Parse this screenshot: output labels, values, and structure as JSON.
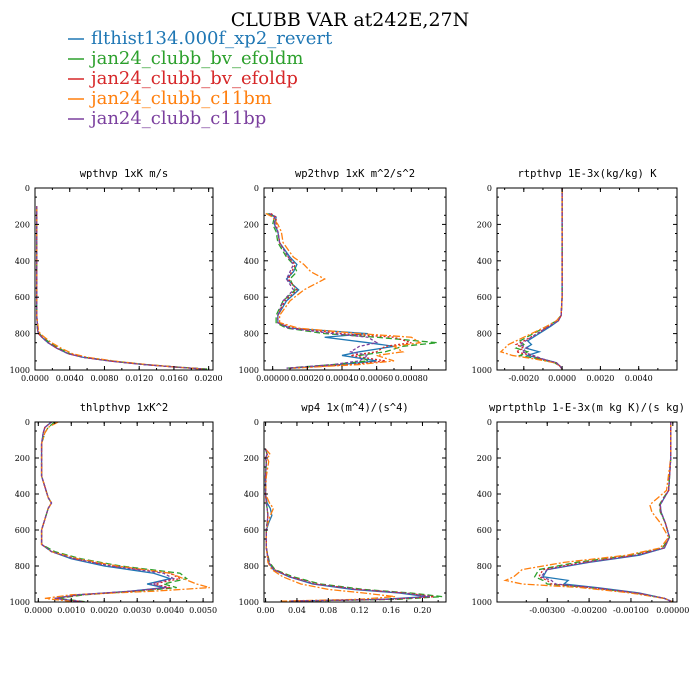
{
  "title": "CLUBB VAR at242E,27N",
  "legend": [
    {
      "label": "flthist134.000f_xp2_revert",
      "color": "#1f77b4"
    },
    {
      "label": "jan24_clubb_bv_efoldm",
      "color": "#2ca02c"
    },
    {
      "label": "jan24_clubb_bv_efoldp",
      "color": "#d62728"
    },
    {
      "label": "jan24_clubb_c11bm",
      "color": "#ff7f0e"
    },
    {
      "label": "jan24_clubb_c11bp",
      "color": "#7b3f9e"
    }
  ],
  "chart_data": [
    {
      "type": "line",
      "title": "wpthvp  1xK m/s",
      "xlim": [
        0,
        0.0205
      ],
      "ylim": [
        1000,
        0
      ],
      "ylabel": "",
      "xticks": [
        0,
        0.004,
        0.008,
        0.012,
        0.016,
        0.02
      ],
      "xticklabels": [
        "0.0000",
        "0.0040",
        "0.0080",
        "0.0120",
        "0.0160",
        "0.0200"
      ],
      "yticks": [
        0,
        200,
        400,
        600,
        800,
        1000
      ],
      "y": [
        100,
        300,
        500,
        700,
        780,
        800,
        820,
        850,
        880,
        910,
        930,
        950,
        970,
        985,
        995
      ],
      "series": [
        {
          "values": [
            0.0002,
            0.0002,
            0.0002,
            0.0002,
            0.0003,
            0.0004,
            0.0008,
            0.0015,
            0.0025,
            0.0038,
            0.0055,
            0.0085,
            0.0125,
            0.0165,
            0.0196
          ]
        },
        {
          "values": [
            0.0002,
            0.0002,
            0.0002,
            0.0002,
            0.0003,
            0.0005,
            0.0009,
            0.0017,
            0.0027,
            0.004,
            0.0057,
            0.0088,
            0.0128,
            0.0168,
            0.0199
          ]
        },
        {
          "values": [
            0.0002,
            0.0002,
            0.0002,
            0.0002,
            0.0003,
            0.0004,
            0.0008,
            0.0015,
            0.0025,
            0.0038,
            0.0055,
            0.0085,
            0.0125,
            0.0165,
            0.0196
          ]
        },
        {
          "values": [
            0.0002,
            0.0002,
            0.0002,
            0.0002,
            0.0004,
            0.0006,
            0.0011,
            0.0019,
            0.003,
            0.0043,
            0.006,
            0.009,
            0.0128,
            0.0165,
            0.0196
          ]
        },
        {
          "values": [
            0.0002,
            0.0002,
            0.0002,
            0.0002,
            0.0003,
            0.0004,
            0.0008,
            0.0015,
            0.0025,
            0.0038,
            0.0055,
            0.0085,
            0.0125,
            0.0165,
            0.0196
          ]
        }
      ]
    },
    {
      "type": "line",
      "title": "wp2thvp  1xK m^2/s^2",
      "xlim": [
        -5e-05,
        0.001
      ],
      "ylim": [
        1000,
        0
      ],
      "xticks": [
        0,
        0.0002,
        0.0004,
        0.0006,
        0.0008
      ],
      "xticklabels": [
        "0.00000",
        "0.00020",
        "0.00040",
        "0.00060",
        "0.00080"
      ],
      "yticks": [
        0,
        200,
        400,
        600,
        800,
        1000
      ],
      "y": [
        140,
        160,
        200,
        240,
        300,
        380,
        420,
        460,
        500,
        560,
        620,
        700,
        740,
        770,
        800,
        820,
        850,
        870,
        900,
        920,
        950,
        970,
        990
      ],
      "series": [
        {
          "values": [
            -2e-05,
            2e-05,
            1e-05,
            3e-05,
            4e-05,
            0.0001,
            0.00014,
            0.00012,
            8e-05,
            0.00015,
            8e-05,
            3e-05,
            3e-05,
            0.0001,
            0.00055,
            0.0003,
            0.00055,
            0.0007,
            0.0005,
            0.0004,
            0.0006,
            0.0004,
            0.0001
          ]
        },
        {
          "values": [
            -3e-05,
            1e-05,
            0.0,
            2e-05,
            3e-05,
            8e-05,
            0.00012,
            0.00014,
            0.0001,
            0.00013,
            6e-05,
            2e-05,
            2e-05,
            8e-05,
            0.0003,
            0.0006,
            0.00095,
            0.00075,
            0.00065,
            0.0005,
            0.00055,
            0.00035,
            8e-05
          ]
        },
        {
          "values": [
            -1e-05,
            2e-05,
            2e-05,
            3e-05,
            4e-05,
            9e-05,
            0.00013,
            0.00011,
            9e-05,
            0.00014,
            7e-05,
            3e-05,
            3e-05,
            0.00012,
            0.0004,
            0.0007,
            0.0008,
            0.00065,
            0.0006,
            0.00045,
            0.00065,
            0.00045,
            0.0001
          ]
        },
        {
          "values": [
            -4e-05,
            0.0,
            3e-05,
            5e-05,
            6e-05,
            0.00012,
            0.00018,
            0.00022,
            0.0003,
            0.00018,
            0.0001,
            4e-05,
            4e-05,
            0.00015,
            0.0005,
            0.0008,
            0.00085,
            0.0007,
            0.00075,
            0.0006,
            0.0007,
            0.0005,
            0.00012
          ]
        },
        {
          "values": [
            -2e-05,
            1e-05,
            1e-05,
            3e-05,
            4e-05,
            9e-05,
            0.00012,
            0.0001,
            8e-05,
            0.00012,
            6e-05,
            3e-05,
            3e-05,
            9e-05,
            0.00035,
            0.00055,
            0.0006,
            0.0005,
            0.00045,
            0.00055,
            0.0005,
            0.00035,
            8e-05
          ]
        }
      ]
    },
    {
      "type": "line",
      "title": "rtpthvp  1E-3x(kg/kg) K",
      "xlim": [
        -0.0034,
        0.006
      ],
      "ylim": [
        1000,
        0
      ],
      "xticks": [
        -0.002,
        0,
        0.002,
        0.004
      ],
      "xticklabels": [
        "-0.0020",
        "0.0000",
        "0.0020",
        "0.0040"
      ],
      "yticks": [
        0,
        200,
        400,
        600,
        800,
        1000
      ],
      "y": [
        0,
        300,
        600,
        700,
        730,
        760,
        800,
        840,
        860,
        880,
        900,
        920,
        940,
        960,
        980,
        995
      ],
      "series": [
        {
          "values": [
            0,
            0,
            0,
            -5e-05,
            -0.0002,
            -0.0006,
            -0.0012,
            -0.0018,
            -0.0016,
            -0.0019,
            -0.0012,
            -0.0018,
            -0.001,
            -0.0003,
            -0.0001,
            0
          ]
        },
        {
          "values": [
            0,
            0,
            0,
            -5e-05,
            -0.0003,
            -0.0008,
            -0.0015,
            -0.0022,
            -0.002,
            -0.0024,
            -0.0018,
            -0.0022,
            -0.0012,
            -0.0004,
            -0.0001,
            0
          ]
        },
        {
          "values": [
            0,
            0,
            0,
            -5e-05,
            -0.0002,
            -0.0007,
            -0.0013,
            -0.002,
            -0.0024,
            -0.002,
            -0.0024,
            -0.0016,
            -0.0011,
            -0.0003,
            -0.0001,
            0
          ]
        },
        {
          "values": [
            0,
            0,
            0,
            -5e-05,
            -0.0003,
            -0.0008,
            -0.0016,
            -0.0024,
            -0.0028,
            -0.003,
            -0.0032,
            -0.0026,
            -0.0014,
            -0.0004,
            -0.0001,
            0
          ]
        },
        {
          "values": [
            0,
            0,
            0,
            -5e-05,
            -0.0002,
            -0.0007,
            -0.0013,
            -0.0019,
            -0.0022,
            -0.0018,
            -0.0021,
            -0.0015,
            -0.001,
            -0.0003,
            -0.0001,
            0
          ]
        }
      ]
    },
    {
      "type": "line",
      "title": "thlpthvp  1xK^2",
      "xlim": [
        -0.0001,
        0.0053
      ],
      "ylim": [
        1000,
        0
      ],
      "xticks": [
        0,
        0.001,
        0.002,
        0.003,
        0.004,
        0.005
      ],
      "xticklabels": [
        "0.0000",
        "0.0010",
        "0.0020",
        "0.0030",
        "0.0040",
        "0.0050"
      ],
      "yticks": [
        0,
        200,
        400,
        600,
        800,
        1000
      ],
      "y": [
        0,
        30,
        60,
        120,
        300,
        420,
        450,
        480,
        600,
        680,
        720,
        760,
        800,
        840,
        870,
        900,
        920,
        940,
        960,
        980,
        1000
      ],
      "series": [
        {
          "values": [
            0.0004,
            0.0002,
            0.00015,
            0.0001,
            0.0001,
            0.0003,
            0.0004,
            0.0003,
            0.0001,
            0.0001,
            0.0004,
            0.001,
            0.002,
            0.0035,
            0.004,
            0.0033,
            0.0038,
            0.0028,
            0.0012,
            0.0005,
            0.0014
          ]
        },
        {
          "values": [
            0.0005,
            0.0003,
            0.0002,
            0.0001,
            0.0001,
            0.0003,
            0.0004,
            0.0003,
            0.0001,
            0.0001,
            0.0005,
            0.0013,
            0.0025,
            0.0043,
            0.0045,
            0.0038,
            0.0042,
            0.003,
            0.0014,
            0.0006,
            0.0015
          ]
        },
        {
          "values": [
            0.0004,
            0.0002,
            0.00015,
            0.0001,
            0.0001,
            0.0003,
            0.0004,
            0.0003,
            0.0001,
            0.0001,
            0.0004,
            0.0011,
            0.0022,
            0.004,
            0.0043,
            0.0035,
            0.004,
            0.0029,
            0.0013,
            0.0005,
            0.0014
          ]
        },
        {
          "values": [
            0.0006,
            0.0003,
            0.0002,
            0.0001,
            0.0001,
            0.0003,
            0.0004,
            0.0003,
            0.0001,
            0.0001,
            0.0004,
            0.0012,
            0.0024,
            0.004,
            0.0044,
            0.0048,
            0.0052,
            0.0035,
            0.001,
            0.0002,
            0.0012
          ]
        },
        {
          "values": [
            0.0004,
            0.0002,
            0.00015,
            0.0001,
            0.0001,
            0.0003,
            0.0004,
            0.0003,
            0.0001,
            0.0001,
            0.0004,
            0.0011,
            0.0022,
            0.0038,
            0.0041,
            0.0034,
            0.0039,
            0.0028,
            0.0012,
            0.0005,
            0.0014
          ]
        }
      ]
    },
    {
      "type": "line",
      "title": "wp4  1x(m^4)/(s^4)",
      "xlim": [
        -0.002,
        0.23
      ],
      "ylim": [
        1000,
        0
      ],
      "xticks": [
        0,
        0.04,
        0.08,
        0.12,
        0.16,
        0.2
      ],
      "xticklabels": [
        "0.00",
        "0.04",
        "0.08",
        "0.12",
        "0.16",
        "0.20"
      ],
      "yticks": [
        0,
        200,
        400,
        600,
        800,
        1000
      ],
      "y": [
        150,
        180,
        200,
        220,
        300,
        400,
        450,
        480,
        520,
        560,
        600,
        700,
        780,
        820,
        860,
        900,
        930,
        950,
        970,
        985,
        995
      ],
      "series": [
        {
          "values": [
            0.0,
            0.002,
            0.0,
            0.001,
            0.0,
            0.0,
            0.002,
            0.006,
            0.008,
            0.004,
            0.001,
            0.001,
            0.004,
            0.01,
            0.03,
            0.06,
            0.11,
            0.17,
            0.205,
            0.15,
            0.03
          ]
        },
        {
          "values": [
            0.0,
            0.002,
            0.0,
            0.001,
            0.0,
            0.0,
            0.001,
            0.002,
            0.003,
            0.002,
            0.001,
            0.001,
            0.005,
            0.012,
            0.035,
            0.07,
            0.125,
            0.185,
            0.225,
            0.17,
            0.035
          ]
        },
        {
          "values": [
            0.0,
            0.002,
            0.0,
            0.001,
            0.0,
            0.0,
            0.001,
            0.002,
            0.003,
            0.002,
            0.001,
            0.001,
            0.004,
            0.011,
            0.032,
            0.065,
            0.118,
            0.178,
            0.215,
            0.16,
            0.032
          ]
        },
        {
          "values": [
            0.0,
            0.006,
            0.002,
            0.004,
            0.001,
            0.0,
            0.005,
            0.01,
            0.006,
            0.003,
            0.001,
            0.001,
            0.003,
            0.008,
            0.022,
            0.045,
            0.08,
            0.125,
            0.165,
            0.12,
            0.02
          ]
        },
        {
          "values": [
            0.0,
            0.002,
            0.0,
            0.001,
            0.0,
            0.0,
            0.001,
            0.002,
            0.003,
            0.002,
            0.001,
            0.001,
            0.004,
            0.01,
            0.03,
            0.062,
            0.115,
            0.175,
            0.21,
            0.155,
            0.03
          ]
        }
      ]
    },
    {
      "type": "line",
      "title": "wprtpthlp  1-E-3x(m kg K)/(s kg)",
      "xlim": [
        -0.0042,
        0.0001
      ],
      "ylim": [
        1000,
        0
      ],
      "xticks": [
        -0.003,
        -0.002,
        -0.001,
        0
      ],
      "xticklabels": [
        "-0.00300",
        "-0.00200",
        "-0.00100",
        "0.00000"
      ],
      "yticks": [
        0,
        200,
        400,
        600,
        800,
        1000
      ],
      "y": [
        0,
        200,
        380,
        420,
        460,
        500,
        560,
        640,
        700,
        740,
        780,
        820,
        860,
        880,
        900,
        920,
        950,
        980,
        1000
      ],
      "series": [
        {
          "values": [
            -5e-05,
            -5e-05,
            -0.0001,
            -0.0002,
            -0.0003,
            -0.00028,
            -0.00018,
            -8e-05,
            -0.0002,
            -0.0008,
            -0.002,
            -0.003,
            -0.0031,
            -0.0025,
            -0.0026,
            -0.0018,
            -0.0008,
            -0.0002,
            0
          ]
        },
        {
          "values": [
            -5e-05,
            -5e-05,
            -0.0001,
            -0.00022,
            -0.00032,
            -0.0003,
            -0.00018,
            -8e-05,
            -0.00025,
            -0.001,
            -0.0023,
            -0.0032,
            -0.0033,
            -0.0031,
            -0.003,
            -0.002,
            -0.0009,
            -0.0002,
            0
          ]
        },
        {
          "values": [
            -5e-05,
            -5e-05,
            -0.0001,
            -0.00021,
            -0.00031,
            -0.00029,
            -0.00018,
            -8e-05,
            -0.00022,
            -0.0009,
            -0.00215,
            -0.0031,
            -0.0032,
            -0.003,
            -0.0029,
            -0.00195,
            -0.00085,
            -0.0002,
            0
          ]
        },
        {
          "values": [
            -5e-05,
            -5e-05,
            -0.00015,
            -0.00035,
            -0.00055,
            -0.0005,
            -0.0003,
            -0.0001,
            -0.0003,
            -0.0011,
            -0.0026,
            -0.0036,
            -0.0038,
            -0.004,
            -0.0036,
            -0.0022,
            -0.001,
            -0.0002,
            0
          ]
        },
        {
          "values": [
            -5e-05,
            -5e-05,
            -0.0001,
            -0.0002,
            -0.0003,
            -0.00028,
            -0.00018,
            -8e-05,
            -0.0002,
            -0.00085,
            -0.00205,
            -0.003,
            -0.00315,
            -0.0029,
            -0.0028,
            -0.0019,
            -0.00085,
            -0.0002,
            0
          ]
        }
      ]
    }
  ]
}
